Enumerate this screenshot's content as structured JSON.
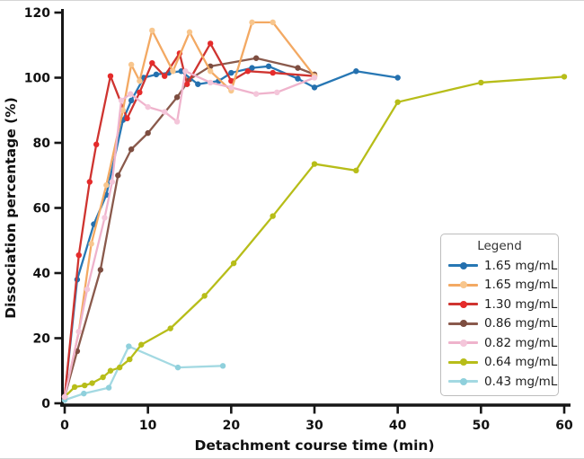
{
  "legend": {
    "title": "Legend"
  },
  "chart_data": {
    "type": "line",
    "title": "",
    "xlabel": "Detachment course time (min)",
    "ylabel": "Dissociation percentage (%)",
    "xlim": [
      0,
      60
    ],
    "ylim": [
      0,
      120
    ],
    "x_ticks": [
      0,
      10,
      20,
      30,
      40,
      50,
      60
    ],
    "y_ticks": [
      0,
      20,
      40,
      60,
      80,
      100,
      120
    ],
    "grid": false,
    "axis_color": "#161616",
    "legend_position": "right-center",
    "z_order": [
      6,
      5,
      3,
      0,
      2,
      1,
      4
    ],
    "series": [
      {
        "name": "1.65 mg/mL",
        "color": "#2777b4",
        "marker_color": "#2470ae",
        "x": [
          0,
          1.5,
          3.5,
          5,
          7,
          8,
          9.5,
          11,
          12.5,
          14,
          16,
          18.5,
          20,
          22.5,
          24.5,
          28,
          30,
          35,
          40
        ],
        "y": [
          2,
          38,
          55,
          64,
          87,
          93,
          100,
          101,
          101.5,
          102,
          98,
          99,
          101.5,
          103,
          103.5,
          99.7,
          97,
          102,
          100
        ]
      },
      {
        "name": "1.65 mg/mL",
        "color": "#f3a963",
        "marker_color": "#f8c68d",
        "x": [
          0,
          1.7,
          3.2,
          5,
          7,
          8,
          9,
          10.5,
          13,
          15,
          17.5,
          20,
          22.5,
          25,
          30
        ],
        "y": [
          2,
          22,
          49,
          67,
          90,
          104,
          99,
          114.5,
          102,
          114,
          102,
          96,
          117,
          117,
          100.5
        ]
      },
      {
        "name": "1.30 mg/mL",
        "color": "#cf3430",
        "marker_color": "#e52b2b",
        "x": [
          0,
          1.7,
          3,
          3.8,
          5.5,
          7.5,
          9,
          10.5,
          12,
          13.8,
          14.7,
          17.5,
          20,
          22,
          25,
          30
        ],
        "y": [
          2,
          45.5,
          68,
          79.5,
          100.5,
          87.5,
          95.5,
          104.5,
          100.5,
          107.5,
          98,
          110.5,
          99,
          102,
          101.5,
          100.5
        ]
      },
      {
        "name": "0.86 mg/mL",
        "color": "#8a5a4c",
        "marker_color": "#7d4d40",
        "x": [
          0,
          1.5,
          4.3,
          6.4,
          8,
          10,
          13.5,
          15,
          17.5,
          23,
          28,
          30
        ],
        "y": [
          2,
          16,
          41,
          70,
          78,
          83,
          94,
          99.5,
          103.5,
          106,
          103,
          101
        ]
      },
      {
        "name": "0.82 mg/mL",
        "color": "#efb3cc",
        "marker_color": "#f4c6da",
        "x": [
          0,
          1.7,
          2.7,
          4.8,
          5.7,
          6.8,
          7.9,
          10,
          12,
          13.5,
          14.5,
          17.5,
          20,
          23,
          25.5,
          30
        ],
        "y": [
          2,
          22,
          35,
          57,
          68,
          93,
          95,
          91,
          89.5,
          86.5,
          102,
          98.5,
          97,
          95,
          95.5,
          100
        ]
      },
      {
        "name": "0.64 mg/mL",
        "color": "#b7bd19",
        "marker_color": "#b7bd19",
        "x": [
          0,
          1.2,
          2.4,
          3.3,
          4.6,
          5.5,
          6.6,
          7.8,
          9.2,
          12.7,
          16.8,
          20.3,
          25,
          30,
          35,
          40,
          50,
          60
        ],
        "y": [
          2,
          5,
          5.5,
          6.2,
          8,
          10,
          11,
          13.5,
          18,
          23,
          33,
          43,
          57.5,
          73.5,
          71.5,
          92.5,
          98.5,
          100.3
        ]
      },
      {
        "name": "0.43 mg/mL",
        "color": "#a3d9e2",
        "marker_color": "#8fd0dc",
        "x": [
          0,
          2.3,
          5.3,
          7.7,
          13.6,
          19
        ],
        "y": [
          1,
          3,
          4.8,
          17.5,
          11,
          11.5
        ]
      }
    ]
  }
}
